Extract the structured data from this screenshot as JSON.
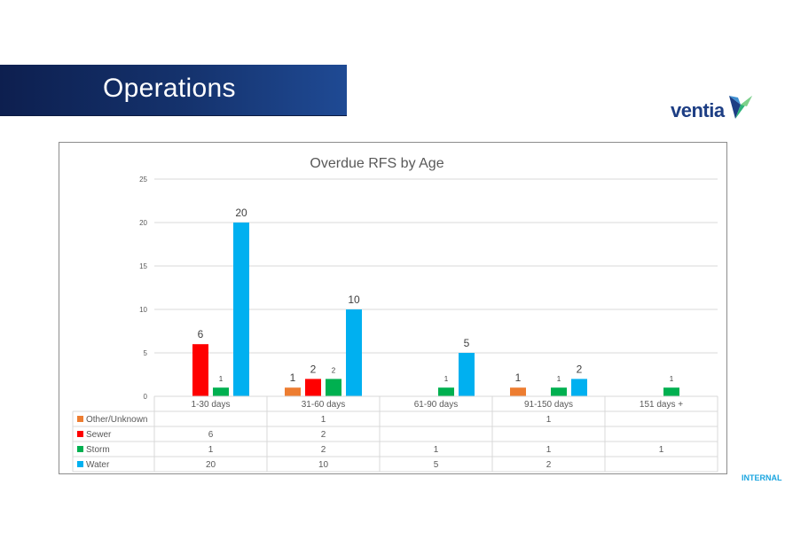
{
  "page": {
    "title": "Operations",
    "brand": "ventia",
    "classification": "INTERNAL"
  },
  "chart_data": {
    "type": "bar",
    "title": "Overdue RFS by Age",
    "categories": [
      "1-30 days",
      "31-60 days",
      "61-90 days",
      "91-150 days",
      "151 days +"
    ],
    "ylim": [
      0,
      25
    ],
    "yticks": [
      0,
      5,
      10,
      15,
      20,
      25
    ],
    "grid": true,
    "legend_position": "data-table",
    "series": [
      {
        "name": "Other/Unknown",
        "color": "#ed7d31",
        "values": [
          null,
          1,
          null,
          1,
          null
        ]
      },
      {
        "name": "Sewer",
        "color": "#ff0000",
        "values": [
          6,
          2,
          null,
          null,
          null
        ]
      },
      {
        "name": "Storm",
        "color": "#00b050",
        "values": [
          1,
          2,
          1,
          1,
          1
        ]
      },
      {
        "name": "Water",
        "color": "#00b0f0",
        "values": [
          20,
          10,
          5,
          2,
          null
        ]
      }
    ]
  }
}
